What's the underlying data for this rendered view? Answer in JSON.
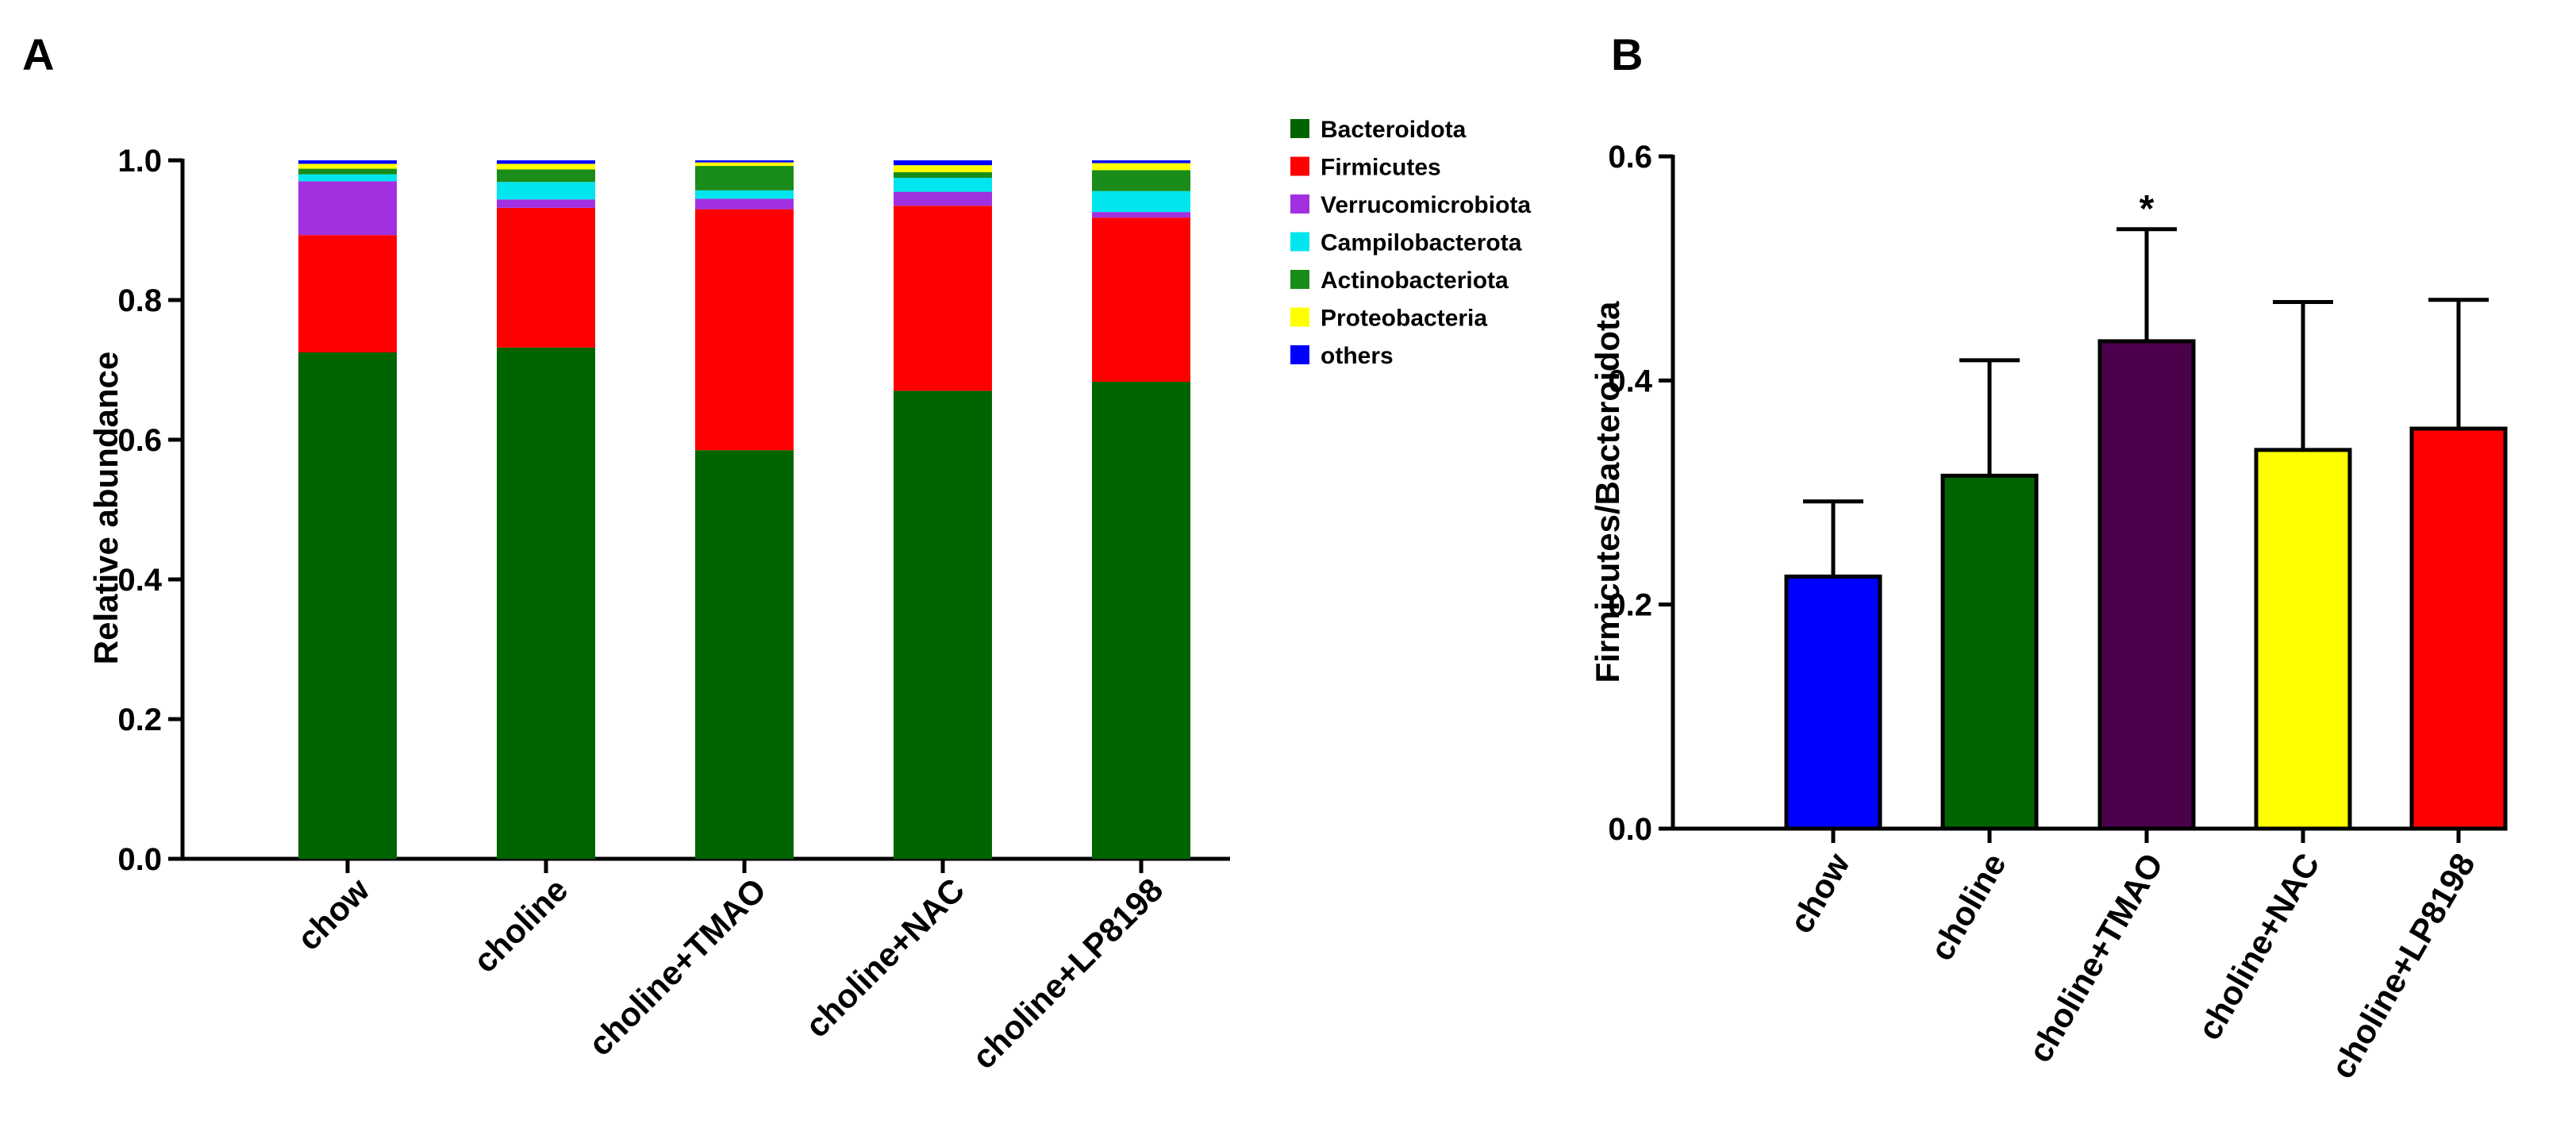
{
  "chart_data": [
    {
      "panel": "A",
      "type": "bar",
      "stacked": true,
      "ylabel": "Relative abundance",
      "ylim": [
        0,
        1.0
      ],
      "yticks": [
        "0.0",
        "0.2",
        "0.4",
        "0.6",
        "0.8",
        "1.0"
      ],
      "categories": [
        "chow",
        "choline",
        "choline+TMAO",
        "choline+NAC",
        "choline+LP8198"
      ],
      "legend_position": "top-right",
      "series": [
        {
          "name": "Bacteroidota",
          "color": "#006400",
          "values": [
            0.725,
            0.732,
            0.585,
            0.67,
            0.683
          ]
        },
        {
          "name": "Firmicutes",
          "color": "#ff0000",
          "values": [
            0.168,
            0.2,
            0.345,
            0.265,
            0.235
          ]
        },
        {
          "name": "Verrucomicrobiota",
          "color": "#a030e0",
          "values": [
            0.077,
            0.012,
            0.015,
            0.02,
            0.008
          ]
        },
        {
          "name": "Campilobacterota",
          "color": "#00e5ee",
          "values": [
            0.01,
            0.025,
            0.012,
            0.02,
            0.03
          ]
        },
        {
          "name": "Actinobacteriota",
          "color": "#1a8c1a",
          "values": [
            0.008,
            0.018,
            0.035,
            0.008,
            0.03
          ]
        },
        {
          "name": "Proteobacteria",
          "color": "#ffff00",
          "values": [
            0.007,
            0.008,
            0.005,
            0.01,
            0.01
          ]
        },
        {
          "name": "others",
          "color": "#0000ff",
          "values": [
            0.005,
            0.005,
            0.003,
            0.007,
            0.004
          ]
        }
      ]
    },
    {
      "panel": "B",
      "type": "bar",
      "ylabel": "Firmicutes/Bacteroidota",
      "ylim": [
        0,
        0.6
      ],
      "yticks": [
        "0.0",
        "0.2",
        "0.4",
        "0.6"
      ],
      "categories": [
        "chow",
        "choline",
        "choline+TMAO",
        "choline+NAC",
        "choline+LP8198"
      ],
      "values": [
        0.225,
        0.315,
        0.435,
        0.338,
        0.357
      ],
      "error_upper": [
        0.292,
        0.418,
        0.535,
        0.47,
        0.472
      ],
      "colors": [
        "#0000ff",
        "#006400",
        "#4b004b",
        "#ffff00",
        "#ff0000"
      ],
      "annotations": [
        "",
        "",
        "*",
        "",
        ""
      ]
    }
  ]
}
